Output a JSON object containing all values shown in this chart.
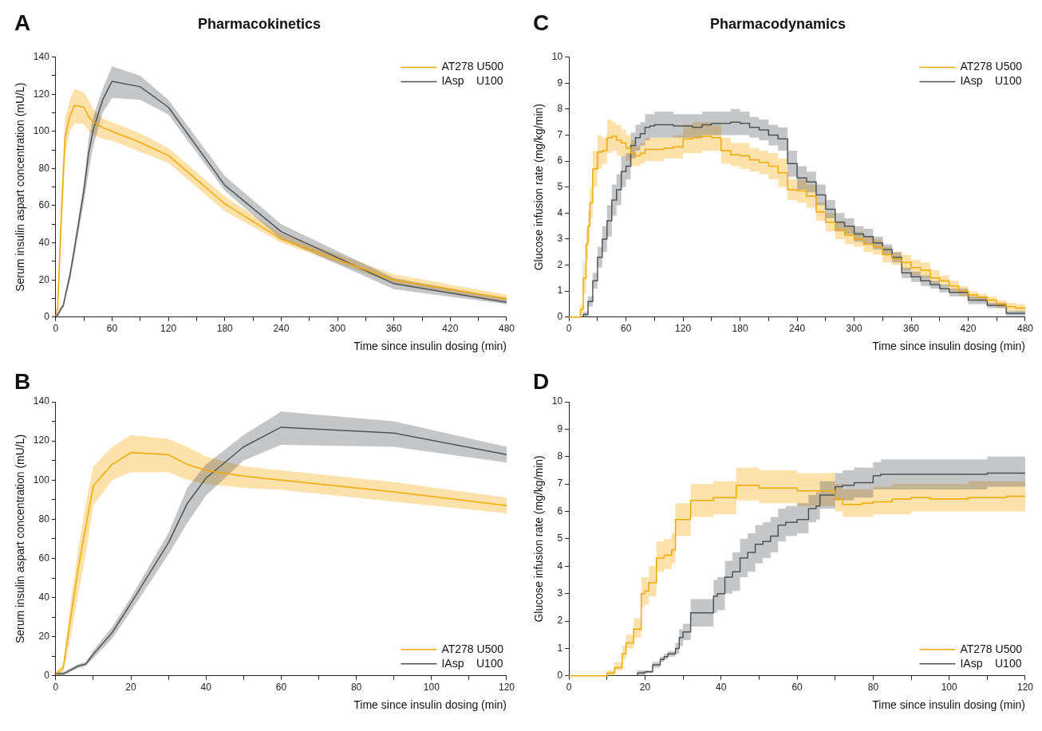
{
  "chart_data": [
    {
      "type": "line",
      "title": "Pharmacokinetics",
      "annotations": [
        "A"
      ],
      "xlabel": "Time since insulin dosing (min)",
      "ylabel": "Serum insulin aspart concentration (mU/L)",
      "x": [
        0,
        2,
        4,
        6,
        8,
        10,
        15,
        20,
        30,
        35,
        40,
        50,
        60,
        90,
        120,
        180,
        240,
        360,
        480
      ],
      "xlim": [
        0,
        480
      ],
      "xticks": [
        0,
        {
          "value": 30,
          "label": null
        },
        60,
        {
          "value": 90,
          "label": null
        },
        120,
        {
          "value": 150,
          "label": null
        },
        180,
        {
          "value": 210,
          "label": null
        },
        240,
        {
          "value": 270,
          "label": null
        },
        300,
        {
          "value": 330,
          "label": null
        },
        360,
        {
          "value": 390,
          "label": null
        },
        420,
        {
          "value": 450,
          "label": null
        },
        480
      ],
      "ylim": [
        0,
        140
      ],
      "yticks": [
        0,
        {
          "value": 10,
          "label": null
        },
        20,
        {
          "value": 30,
          "label": null
        },
        40,
        {
          "value": 50,
          "label": null
        },
        60,
        {
          "value": 70,
          "label": null
        },
        80,
        {
          "value": 90,
          "label": null
        },
        100,
        {
          "value": 110,
          "label": null
        },
        120,
        {
          "value": 130,
          "label": null
        },
        140
      ],
      "legend": "top right",
      "grid": false,
      "series": [
        {
          "name": "AT278 U500",
          "color": "#f5a800",
          "values": [
            1,
            4,
            30,
            55,
            76,
            97,
            108,
            114,
            113,
            108,
            105,
            102,
            100,
            94,
            87,
            61,
            42,
            20,
            10
          ],
          "lower": [
            0,
            2,
            20,
            42,
            62,
            87,
            100,
            104,
            104,
            100,
            98,
            96,
            95,
            89,
            83,
            57,
            40,
            18,
            8
          ],
          "upper": [
            2,
            6,
            38,
            65,
            88,
            107,
            117,
            123,
            121,
            117,
            112,
            107,
            105,
            99,
            91,
            65,
            45,
            23,
            12
          ]
        },
        {
          "name": "IAsp    U100",
          "color": "#4d5459",
          "values": [
            1,
            1,
            3,
            5,
            6,
            11,
            22,
            37,
            68,
            88,
            101,
            117,
            127,
            124,
            113,
            71,
            46,
            18,
            8
          ],
          "lower": [
            0,
            0,
            2,
            4,
            5,
            9,
            19,
            33,
            62,
            78,
            92,
            110,
            118,
            117,
            109,
            68,
            42,
            15,
            7
          ],
          "upper": [
            2,
            2,
            4,
            6,
            7,
            13,
            25,
            40,
            73,
            96,
            108,
            123,
            135,
            130,
            117,
            76,
            50,
            21,
            10
          ]
        }
      ]
    },
    {
      "type": "step",
      "title": "Pharmacodynamics",
      "annotations": [
        "C"
      ],
      "xlabel": "Time since insulin dosing (min)",
      "ylabel": "Glucose infusion rate (mg/kg/min)",
      "xlim": [
        0,
        480
      ],
      "xticks": [
        0,
        {
          "value": 30,
          "label": null
        },
        60,
        {
          "value": 90,
          "label": null
        },
        120,
        {
          "value": 150,
          "label": null
        },
        180,
        {
          "value": 210,
          "label": null
        },
        240,
        {
          "value": 270,
          "label": null
        },
        300,
        {
          "value": 330,
          "label": null
        },
        360,
        {
          "value": 390,
          "label": null
        },
        420,
        {
          "value": 450,
          "label": null
        },
        480
      ],
      "ylim": [
        0,
        10
      ],
      "yticks": [
        0,
        1,
        2,
        3,
        4,
        5,
        6,
        7,
        8,
        9,
        10
      ],
      "legend": "top right",
      "grid": false,
      "series": [
        {
          "name": "AT278 U500",
          "color": "#f5a800",
          "x": [
            0,
            12,
            15,
            18,
            20,
            22,
            25,
            30,
            35,
            40,
            45,
            50,
            55,
            60,
            65,
            70,
            75,
            80,
            90,
            100,
            110,
            120,
            130,
            140,
            150,
            160,
            170,
            180,
            190,
            200,
            210,
            220,
            230,
            240,
            250,
            260,
            270,
            280,
            290,
            300,
            310,
            320,
            330,
            340,
            350,
            360,
            370,
            380,
            390,
            400,
            410,
            420,
            430,
            440,
            450,
            460,
            470,
            480
          ],
          "values": [
            0,
            0,
            0.3,
            1.5,
            2.8,
            3.5,
            4.4,
            5.7,
            6.35,
            6.4,
            6.9,
            6.95,
            6.8,
            6.7,
            6.5,
            6.3,
            6.2,
            6.3,
            6.45,
            6.45,
            6.5,
            6.55,
            6.85,
            6.9,
            6.95,
            6.9,
            6.4,
            6.25,
            6.2,
            6.05,
            5.95,
            5.8,
            5.55,
            4.9,
            4.85,
            4.65,
            4.05,
            3.65,
            3.35,
            3.15,
            3,
            2.8,
            2.7,
            2.4,
            2.25,
            2.1,
            1.9,
            1.8,
            1.5,
            1.4,
            1.2,
            1,
            0.85,
            0.75,
            0.65,
            0.5,
            0.4,
            0.35
          ],
          "lower": [
            0,
            0,
            0.1,
            0.9,
            2.2,
            2.9,
            3.8,
            5.0,
            5.7,
            5.9,
            6.3,
            6.4,
            6.2,
            6.2,
            6.0,
            5.8,
            5.8,
            5.9,
            6.0,
            6.0,
            6.1,
            6.1,
            6.3,
            6.3,
            6.4,
            6.4,
            5.9,
            5.8,
            5.7,
            5.6,
            5.5,
            5.3,
            5.0,
            4.5,
            4.4,
            4.2,
            3.7,
            3.3,
            3.0,
            2.8,
            2.7,
            2.5,
            2.4,
            2.1,
            2.0,
            1.8,
            1.6,
            1.5,
            1.3,
            1.2,
            1.0,
            0.8,
            0.7,
            0.6,
            0.5,
            0.35,
            0.25,
            0.2
          ],
          "upper": [
            0,
            0,
            0.5,
            2.1,
            3.4,
            4.1,
            5.0,
            6.4,
            7.0,
            6.9,
            7.6,
            7.5,
            7.4,
            7.2,
            7.0,
            6.8,
            6.6,
            6.7,
            6.9,
            6.9,
            6.9,
            7.0,
            7.4,
            7.5,
            7.5,
            7.4,
            6.9,
            6.7,
            6.7,
            6.5,
            6.4,
            6.3,
            6.1,
            5.3,
            5.3,
            5.1,
            4.4,
            4.0,
            3.7,
            3.5,
            3.3,
            3.1,
            3.0,
            2.7,
            2.5,
            2.4,
            2.2,
            2.1,
            1.8,
            1.6,
            1.4,
            1.2,
            1.0,
            0.9,
            0.8,
            0.65,
            0.55,
            0.5
          ]
        },
        {
          "name": "IAsp    U100",
          "color": "#4d5459",
          "x": [
            15,
            20,
            25,
            30,
            35,
            40,
            45,
            50,
            55,
            60,
            65,
            70,
            75,
            80,
            85,
            90,
            100,
            110,
            120,
            130,
            140,
            150,
            160,
            170,
            180,
            190,
            200,
            210,
            220,
            230,
            240,
            250,
            260,
            270,
            280,
            290,
            300,
            310,
            320,
            330,
            340,
            350,
            360,
            370,
            380,
            390,
            400,
            420,
            440,
            460,
            480
          ],
          "values": [
            0,
            0.1,
            0.6,
            1.4,
            2.3,
            3,
            3.7,
            4.5,
            4.9,
            5.6,
            5.8,
            6.6,
            6.9,
            7.05,
            7.3,
            7.35,
            7.4,
            7.4,
            7.35,
            7.35,
            7.3,
            7.4,
            7.45,
            7.45,
            7.5,
            7.45,
            7.3,
            7.2,
            7,
            6.85,
            5.9,
            5.35,
            5.2,
            4.7,
            4.15,
            3.65,
            3.5,
            3.2,
            3.1,
            2.85,
            2.6,
            2.3,
            1.7,
            1.55,
            1.4,
            1.25,
            1.1,
            0.95,
            0.65,
            0.45,
            0.15
          ],
          "lower": [
            0,
            0,
            0.4,
            1.1,
            1.9,
            2.5,
            3.1,
            3.9,
            4.3,
            5.0,
            5.3,
            6.1,
            6.4,
            6.6,
            6.8,
            6.9,
            6.9,
            6.9,
            6.9,
            6.9,
            6.9,
            7.0,
            7.0,
            7.0,
            7.0,
            7.0,
            6.9,
            6.8,
            6.6,
            6.4,
            5.4,
            4.9,
            4.8,
            4.3,
            3.8,
            3.3,
            3.2,
            2.9,
            2.8,
            2.6,
            2.4,
            2.1,
            1.5,
            1.35,
            1.2,
            1.1,
            0.95,
            0.8,
            0.5,
            0.35,
            0.05
          ],
          "upper": [
            0,
            0.2,
            0.8,
            1.7,
            2.7,
            3.5,
            4.3,
            5.1,
            5.5,
            6.2,
            6.3,
            7.1,
            7.4,
            7.5,
            7.8,
            7.8,
            7.9,
            7.9,
            7.8,
            7.8,
            7.8,
            7.9,
            7.9,
            7.9,
            8.0,
            7.9,
            7.7,
            7.6,
            7.4,
            7.3,
            6.4,
            5.8,
            5.6,
            5.1,
            4.5,
            4.0,
            3.8,
            3.5,
            3.4,
            3.1,
            2.8,
            2.5,
            1.9,
            1.75,
            1.6,
            1.4,
            1.25,
            1.1,
            0.8,
            0.55,
            0.25
          ]
        }
      ]
    },
    {
      "type": "line",
      "annotations": [
        "B"
      ],
      "xlabel": "Time since insulin dosing (min)",
      "ylabel": "Serum insulin aspart concentration (mU/L)",
      "x": [
        0,
        2,
        4,
        6,
        8,
        10,
        15,
        20,
        30,
        35,
        40,
        50,
        60,
        90,
        120
      ],
      "xlim": [
        0,
        120
      ],
      "xticks": [
        0,
        {
          "value": 10,
          "label": null
        },
        20,
        {
          "value": 30,
          "label": null
        },
        40,
        {
          "value": 50,
          "label": null
        },
        60,
        {
          "value": 70,
          "label": null
        },
        80,
        {
          "value": 90,
          "label": null
        },
        100,
        {
          "value": 110,
          "label": null
        },
        120
      ],
      "ylim": [
        0,
        140
      ],
      "yticks": [
        0,
        {
          "value": 10,
          "label": null
        },
        20,
        {
          "value": 30,
          "label": null
        },
        40,
        {
          "value": 50,
          "label": null
        },
        60,
        {
          "value": 70,
          "label": null
        },
        80,
        {
          "value": 90,
          "label": null
        },
        100,
        {
          "value": 110,
          "label": null
        },
        120,
        {
          "value": 130,
          "label": null
        },
        140
      ],
      "legend": "bottom right",
      "grid": false,
      "series": [
        {
          "name": "AT278 U500",
          "color": "#f5a800",
          "values": [
            1,
            4,
            30,
            55,
            76,
            97,
            108,
            114,
            113,
            108,
            105,
            102,
            100,
            94,
            87
          ],
          "lower": [
            0,
            2,
            20,
            42,
            62,
            87,
            100,
            104,
            104,
            100,
            98,
            96,
            95,
            89,
            83
          ],
          "upper": [
            2,
            6,
            38,
            65,
            88,
            107,
            117,
            123,
            121,
            117,
            112,
            107,
            105,
            99,
            91
          ]
        },
        {
          "name": "IAsp    U100",
          "color": "#4d5459",
          "values": [
            1,
            1,
            3,
            5,
            6,
            11,
            22,
            37,
            68,
            88,
            101,
            117,
            127,
            124,
            113
          ],
          "lower": [
            0,
            0,
            2,
            4,
            5,
            9,
            19,
            33,
            62,
            78,
            92,
            110,
            118,
            117,
            109
          ],
          "upper": [
            2,
            2,
            4,
            6,
            7,
            13,
            25,
            40,
            73,
            96,
            108,
            123,
            135,
            130,
            117
          ]
        }
      ]
    },
    {
      "type": "step",
      "annotations": [
        "D"
      ],
      "xlabel": "Time since insulin dosing (min)",
      "ylabel": "Glucose infusion rate (mg/kg/min)",
      "xlim": [
        0,
        120
      ],
      "xticks": [
        0,
        {
          "value": 10,
          "label": null
        },
        20,
        {
          "value": 30,
          "label": null
        },
        40,
        {
          "value": 50,
          "label": null
        },
        60,
        {
          "value": 70,
          "label": null
        },
        80,
        {
          "value": 90,
          "label": null
        },
        100,
        {
          "value": 110,
          "label": null
        },
        120
      ],
      "ylim": [
        0,
        10
      ],
      "yticks": [
        0,
        1,
        2,
        3,
        4,
        5,
        6,
        7,
        8,
        9,
        10
      ],
      "legend": "bottom right",
      "grid": false,
      "series": [
        {
          "name": "AT278 U500",
          "color": "#f5a800",
          "x": [
            0,
            10,
            12,
            14,
            15,
            17,
            19,
            20,
            21,
            23,
            25,
            27,
            28,
            30,
            32,
            35,
            38,
            40,
            44,
            45,
            50,
            55,
            60,
            65,
            70,
            72,
            77,
            80,
            85,
            90,
            95,
            100,
            105,
            110,
            115,
            120
          ],
          "values": [
            0,
            0,
            0.1,
            0.3,
            0.8,
            1.2,
            1.7,
            3,
            3.1,
            3.4,
            4.3,
            4.4,
            4.6,
            5.7,
            5.7,
            6.4,
            6.4,
            6.5,
            6.5,
            6.95,
            6.95,
            6.85,
            6.85,
            6.75,
            6.75,
            6.45,
            6.25,
            6.3,
            6.35,
            6.45,
            6.5,
            6.45,
            6.45,
            6.5,
            6.5,
            6.55
          ],
          "lower": [
            0,
            0,
            0,
            0.2,
            0.6,
            1.0,
            1.4,
            2.5,
            2.6,
            2.9,
            3.8,
            3.9,
            4.1,
            5.1,
            5.1,
            5.8,
            5.8,
            5.9,
            5.9,
            6.4,
            6.4,
            6.3,
            6.3,
            6.2,
            6.2,
            6.0,
            5.8,
            5.8,
            5.9,
            5.9,
            6.0,
            6.0,
            6.0,
            6.0,
            6.0,
            6.0
          ],
          "upper": [
            0,
            0,
            0.2,
            0.5,
            1.1,
            1.5,
            2.1,
            3.6,
            3.6,
            4.0,
            4.9,
            5.0,
            5.2,
            6.3,
            6.3,
            7.0,
            7.0,
            7.1,
            7.1,
            7.6,
            7.6,
            7.5,
            7.5,
            7.4,
            7.4,
            7.0,
            6.8,
            6.8,
            6.9,
            7.0,
            7.0,
            7.0,
            7.0,
            7.1,
            7.1,
            7.1
          ]
        },
        {
          "name": "IAsp    U100",
          "color": "#4d5459",
          "x": [
            18,
            20,
            22,
            24,
            25,
            26,
            28,
            29,
            30,
            32,
            34,
            36,
            38,
            39,
            41,
            43,
            45,
            47,
            49,
            51,
            53,
            55,
            57,
            60,
            63,
            65,
            66,
            68,
            70,
            72,
            75,
            77,
            80,
            82,
            85,
            90,
            95,
            100,
            105,
            110,
            115,
            120
          ],
          "values": [
            0,
            0.1,
            0.15,
            0.4,
            0.6,
            0.7,
            0.8,
            1,
            1.4,
            1.6,
            2.3,
            2.3,
            2.3,
            2.9,
            3,
            3.6,
            3.8,
            4.3,
            4.5,
            4.8,
            4.9,
            5.1,
            5.5,
            5.6,
            5.7,
            6.1,
            6.2,
            6.6,
            6.6,
            6.9,
            6.95,
            7.05,
            7.05,
            7.3,
            7.35,
            7.35,
            7.35,
            7.35,
            7.35,
            7.35,
            7.4,
            7.4
          ],
          "lower": [
            0,
            0,
            0.1,
            0.3,
            0.5,
            0.6,
            0.7,
            0.8,
            1.1,
            1.3,
            1.8,
            1.8,
            1.8,
            2.3,
            2.4,
            3.0,
            3.1,
            3.6,
            3.8,
            4.1,
            4.3,
            4.5,
            4.9,
            5.1,
            5.2,
            5.6,
            5.7,
            6.1,
            6.1,
            6.4,
            6.4,
            6.5,
            6.5,
            6.8,
            6.8,
            6.8,
            6.8,
            6.8,
            6.8,
            6.8,
            6.9,
            6.9
          ],
          "upper": [
            0,
            0.2,
            0.2,
            0.5,
            0.7,
            0.8,
            0.9,
            1.2,
            1.7,
            1.9,
            2.8,
            2.8,
            2.8,
            3.5,
            3.6,
            4.2,
            4.5,
            5.0,
            5.2,
            5.5,
            5.6,
            5.8,
            6.1,
            6.2,
            6.3,
            6.6,
            6.7,
            7.1,
            7.1,
            7.4,
            7.5,
            7.6,
            7.6,
            7.8,
            7.9,
            7.9,
            7.9,
            7.9,
            7.9,
            7.9,
            8.0,
            8.0
          ]
        }
      ]
    }
  ]
}
